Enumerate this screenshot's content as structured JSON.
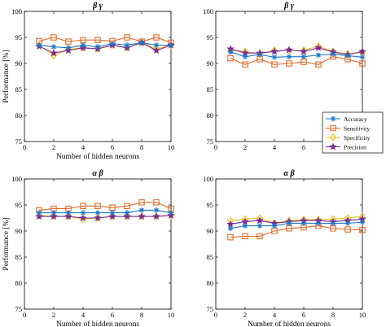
{
  "chart_data": [
    {
      "type": "line",
      "title": "β γ",
      "xlabel": "Number of hidden neurons",
      "ylabel": "Performance [%]",
      "xlim": [
        0,
        10
      ],
      "ylim": [
        75,
        100
      ],
      "xticks": [
        0,
        2,
        4,
        6,
        8,
        10
      ],
      "yticks": [
        75,
        80,
        85,
        90,
        95,
        100
      ],
      "grid": false,
      "x": [
        1,
        2,
        3,
        4,
        5,
        6,
        7,
        8,
        9,
        10
      ],
      "series": [
        {
          "name": "Accuracy",
          "values": [
            93.5,
            93.2,
            93.0,
            93.5,
            93.2,
            93.8,
            93.5,
            94.0,
            93.5,
            93.5
          ]
        },
        {
          "name": "Sensitivity",
          "values": [
            94.3,
            95.0,
            94.2,
            94.5,
            94.5,
            94.3,
            95.0,
            94.2,
            95.0,
            94.0
          ]
        },
        {
          "name": "Specificity",
          "values": [
            93.5,
            91.5,
            92.7,
            93.0,
            92.8,
            93.5,
            93.0,
            94.0,
            92.8,
            93.5
          ]
        },
        {
          "name": "Precision",
          "values": [
            93.3,
            92.0,
            92.5,
            93.0,
            92.8,
            93.5,
            93.0,
            94.0,
            92.5,
            93.5
          ]
        }
      ]
    },
    {
      "type": "line",
      "title": "β γ",
      "xlabel": "",
      "ylabel": "",
      "xlim": [
        0,
        10
      ],
      "ylim": [
        75,
        100
      ],
      "xticks": [
        0,
        2,
        4,
        6,
        8,
        10
      ],
      "yticks": [
        75,
        80,
        85,
        90,
        95,
        100
      ],
      "grid": false,
      "x": [
        1,
        2,
        3,
        4,
        5,
        6,
        7,
        8,
        9,
        10
      ],
      "series": [
        {
          "name": "Accuracy",
          "values": [
            92.2,
            91.3,
            91.7,
            91.2,
            91.3,
            91.3,
            91.6,
            91.8,
            91.5,
            91.2
          ]
        },
        {
          "name": "Sensitivity",
          "values": [
            91.0,
            89.8,
            90.8,
            89.8,
            90.0,
            90.3,
            89.8,
            91.3,
            90.8,
            90.0
          ]
        },
        {
          "name": "Specificity",
          "values": [
            92.5,
            92.3,
            91.8,
            92.5,
            92.5,
            92.5,
            93.3,
            92.3,
            91.8,
            92.2
          ]
        },
        {
          "name": "Precision",
          "values": [
            92.8,
            92.0,
            92.0,
            92.3,
            92.6,
            92.3,
            93.0,
            92.2,
            91.7,
            92.3
          ]
        }
      ]
    },
    {
      "type": "line",
      "title": "α β",
      "xlabel": "Number of hidden neurons",
      "ylabel": "Performance [%]",
      "xlim": [
        0,
        10
      ],
      "ylim": [
        75,
        100
      ],
      "xticks": [
        0,
        2,
        4,
        6,
        8,
        10
      ],
      "yticks": [
        75,
        80,
        85,
        90,
        95,
        100
      ],
      "grid": false,
      "x": [
        1,
        2,
        3,
        4,
        5,
        6,
        7,
        8,
        9,
        10
      ],
      "series": [
        {
          "name": "Accuracy",
          "values": [
            93.5,
            93.5,
            93.5,
            93.5,
            93.5,
            93.5,
            93.5,
            94.0,
            94.0,
            93.5
          ]
        },
        {
          "name": "Sensitivity",
          "values": [
            94.0,
            94.3,
            94.3,
            94.8,
            94.8,
            94.5,
            94.8,
            95.5,
            95.5,
            94.3
          ]
        },
        {
          "name": "Specificity",
          "values": [
            93.0,
            92.8,
            92.8,
            92.3,
            92.5,
            92.8,
            92.8,
            92.8,
            92.8,
            93.0
          ]
        },
        {
          "name": "Precision",
          "values": [
            92.8,
            92.8,
            92.8,
            92.5,
            92.5,
            92.8,
            92.8,
            92.8,
            92.8,
            93.0
          ]
        }
      ]
    },
    {
      "type": "line",
      "title": "α β",
      "xlabel": "Number of hidden neurons",
      "ylabel": "",
      "xlim": [
        0,
        10
      ],
      "ylim": [
        75,
        100
      ],
      "xticks": [
        0,
        2,
        4,
        6,
        8,
        10
      ],
      "yticks": [
        75,
        80,
        85,
        90,
        95,
        100
      ],
      "grid": false,
      "x": [
        1,
        2,
        3,
        4,
        5,
        6,
        7,
        8,
        9,
        10
      ],
      "series": [
        {
          "name": "Accuracy",
          "values": [
            90.5,
            91.0,
            91.0,
            91.0,
            91.5,
            91.5,
            91.5,
            91.5,
            91.5,
            91.7
          ]
        },
        {
          "name": "Sensitivity",
          "values": [
            88.8,
            89.0,
            89.0,
            90.0,
            90.5,
            90.7,
            91.0,
            90.5,
            90.3,
            90.2
          ]
        },
        {
          "name": "Specificity",
          "values": [
            92.0,
            92.3,
            92.5,
            91.5,
            92.0,
            92.2,
            92.2,
            92.3,
            92.5,
            92.8
          ]
        },
        {
          "name": "Precision",
          "values": [
            91.3,
            91.8,
            92.0,
            91.5,
            91.8,
            92.0,
            92.0,
            91.8,
            92.0,
            92.3
          ]
        }
      ]
    }
  ],
  "legend": {
    "placement": "right, between panels",
    "entries": [
      "Accuracy",
      "Sensitivity",
      "Specificity",
      "Precision"
    ]
  },
  "style": {
    "colors": {
      "Accuracy": "#1f78c8",
      "Sensitivity": "#e06b2b",
      "Specificity": "#f2c11a",
      "Precision": "#7a2a8f"
    },
    "markers": {
      "Accuracy": "asterisk",
      "Sensitivity": "square",
      "Specificity": "diamond",
      "Precision": "star"
    }
  }
}
